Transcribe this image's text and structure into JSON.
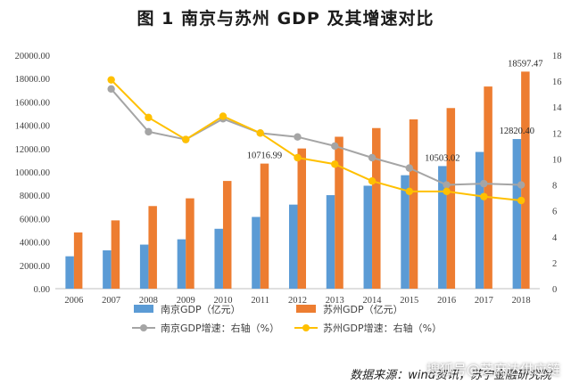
{
  "title": "图 1    南京与苏州 GDP 及其增速对比",
  "source": "数据来源：wind资讯，苏宁金融研究院",
  "watermark": "搜狐号@芝麻达供应链",
  "colors": {
    "nanjing_gdp": "#5b9bd5",
    "suzhou_gdp": "#ed7d31",
    "nanjing_growth": "#a5a5a5",
    "suzhou_growth": "#ffc000"
  },
  "chart_data": {
    "type": "bar",
    "categories": [
      "2006",
      "2007",
      "2008",
      "2009",
      "2010",
      "2011",
      "2012",
      "2013",
      "2014",
      "2015",
      "2016",
      "2017",
      "2018"
    ],
    "ylim": [
      0,
      20000
    ],
    "yticks": [
      "0.00",
      "2000.00",
      "4000.00",
      "6000.00",
      "8000.00",
      "10000.00",
      "12000.00",
      "14000.00",
      "16000.00",
      "18000.00",
      "20000.00"
    ],
    "y2lim": [
      0,
      18
    ],
    "y2ticks": [
      "0",
      "2",
      "4",
      "6",
      "8",
      "10",
      "12",
      "14",
      "16",
      "18"
    ],
    "series": [
      {
        "name": "南京GDP（亿元）",
        "type": "bar",
        "axis": "left",
        "values": [
          2774,
          3284,
          3775,
          4230,
          5131,
          6146,
          7202,
          8012,
          8821,
          9721,
          10503.02,
          11715,
          12820.4
        ]
      },
      {
        "name": "苏州GDP（亿元）",
        "type": "bar",
        "axis": "left",
        "values": [
          4820,
          5850,
          7078,
          7740,
          9229,
          10716.99,
          12012,
          13016,
          13761,
          14504,
          15475,
          17320,
          18597.47
        ]
      },
      {
        "name": "南京GDP增速：右轴（%）",
        "type": "line",
        "axis": "right",
        "values": [
          null,
          15.4,
          12.1,
          11.5,
          13.1,
          12.0,
          11.7,
          11.0,
          10.1,
          9.3,
          8.0,
          8.1,
          8.0
        ]
      },
      {
        "name": "苏州GDP增速：右轴（%）",
        "type": "line",
        "axis": "right",
        "values": [
          null,
          16.1,
          13.2,
          11.5,
          13.3,
          12.0,
          10.1,
          9.6,
          8.3,
          7.5,
          7.5,
          7.1,
          6.8
        ]
      }
    ],
    "data_labels": [
      {
        "text": "10716.99",
        "series": 1,
        "index": 5
      },
      {
        "text": "10503.02",
        "series": 0,
        "index": 10
      },
      {
        "text": "18597.47",
        "series": 1,
        "index": 12
      },
      {
        "text": "12820.40",
        "series": 0,
        "index": 12
      }
    ],
    "legend": "bottom"
  }
}
